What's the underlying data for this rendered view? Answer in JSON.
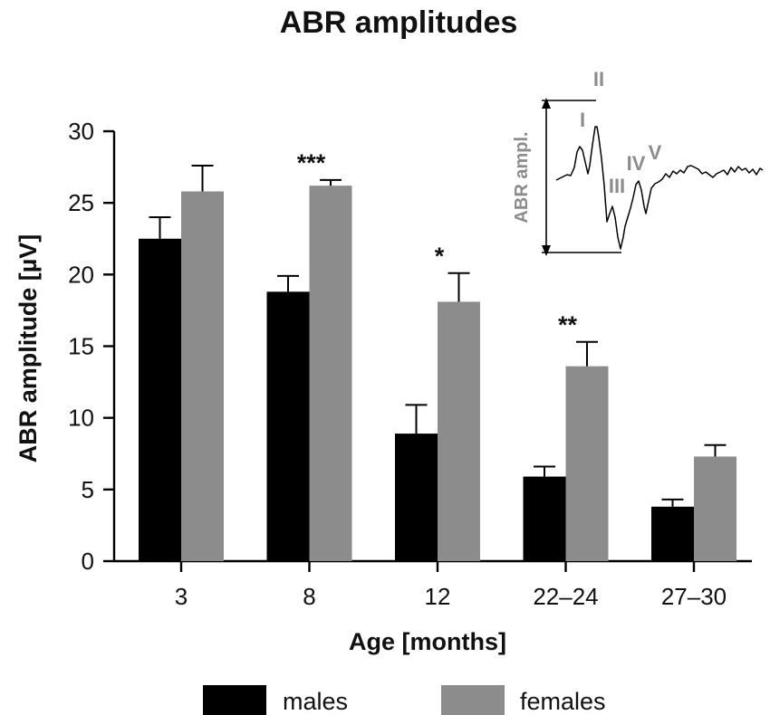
{
  "chart_data": {
    "type": "bar",
    "title": "ABR amplitudes",
    "xlabel": "Age [months]",
    "ylabel": "ABR amplitude [µV]",
    "ylim": [
      0,
      30
    ],
    "yticks": [
      "0",
      "5",
      "10",
      "15",
      "20",
      "25",
      "30"
    ],
    "categories": [
      "3",
      "8",
      "12",
      "22–24",
      "27–30"
    ],
    "series": [
      {
        "name": "males",
        "color": "#000000",
        "values": [
          22.5,
          18.8,
          8.9,
          5.9,
          3.8
        ],
        "errors": [
          1.5,
          1.1,
          2.0,
          0.7,
          0.5
        ]
      },
      {
        "name": "females",
        "color": "#8c8c8c",
        "values": [
          25.8,
          26.2,
          18.1,
          13.6,
          7.3
        ],
        "errors": [
          1.8,
          0.4,
          2.0,
          1.7,
          0.8
        ]
      }
    ],
    "significance": [
      {
        "category": "8",
        "label": "***"
      },
      {
        "category": "12",
        "label": "*"
      },
      {
        "category": "22–24",
        "label": "**"
      }
    ],
    "legend": {
      "position": "bottom",
      "entries": [
        "males",
        "females"
      ]
    },
    "inset": {
      "label": "ABR ampl.",
      "peaks": [
        "I",
        "II",
        "III",
        "IV",
        "V"
      ]
    }
  }
}
